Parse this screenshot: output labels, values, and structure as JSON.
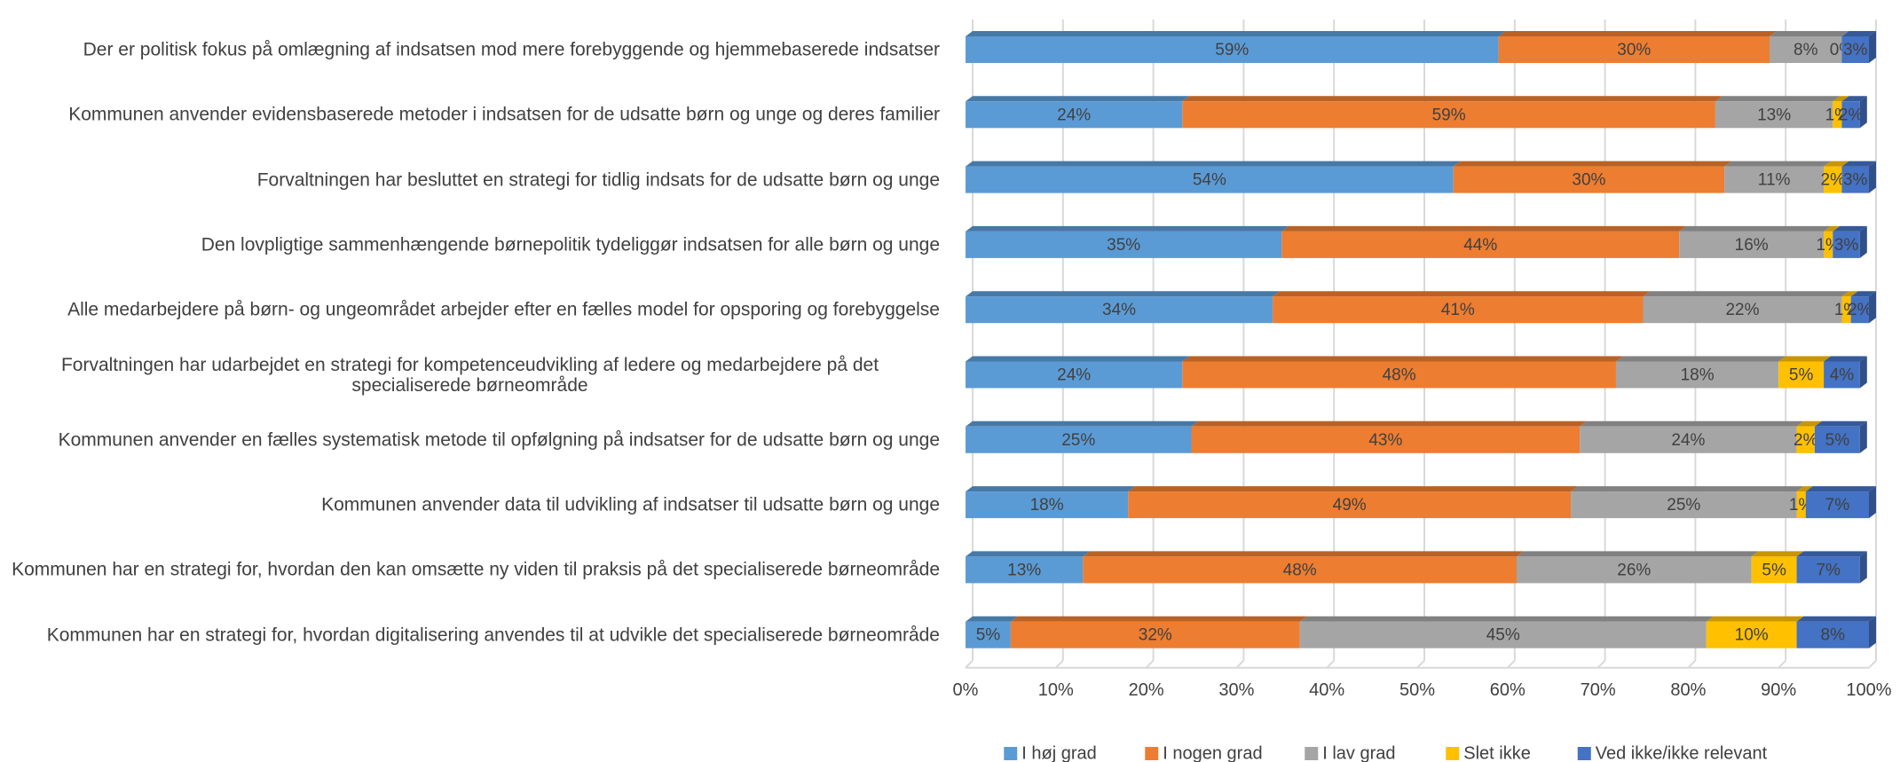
{
  "chart_data": {
    "type": "stacked_bar_horizontal",
    "categories": [
      "Der er politisk fokus på omlægning af indsatsen mod mere forebyggende og hjemmebaserede indsatser",
      "Kommunen anvender evidensbaserede metoder i indsatsen for de udsatte børn og unge og deres familier",
      "Forvaltningen har besluttet en strategi for tidlig indsats for de udsatte børn og unge",
      "Den lovpligtige sammenhængende børnepolitik tydeliggør indsatsen for alle børn og unge",
      "Alle medarbejdere på børn- og ungeområdet arbejder efter en fælles model for opsporing og forebyggelse",
      "Forvaltningen har udarbejdet en strategi for kompetenceudvikling af ledere og medarbejdere på det specialiserede børneområde",
      "Kommunen anvender en fælles systematisk metode til opfølgning på indsatser for de udsatte børn og unge",
      "Kommunen anvender data til udvikling af indsatser til udsatte børn og unge",
      "Kommunen har en strategi for, hvordan den kan omsætte ny viden til praksis på det specialiserede børneområde",
      "Kommunen har en strategi for, hvordan digitalisering anvendes til at udvikle det specialiserede børneområde"
    ],
    "series": [
      {
        "name": "I høj grad",
        "color": "#5b9bd5",
        "values": [
          59,
          24,
          54,
          35,
          34,
          24,
          25,
          18,
          13,
          5
        ],
        "value_labels": [
          "59%",
          "24%",
          "54%",
          "35%",
          "34%",
          "24%",
          "25%",
          "18%",
          "13%",
          "5%"
        ]
      },
      {
        "name": "I nogen grad",
        "color": "#ed7d31",
        "values": [
          30,
          59,
          30,
          44,
          41,
          48,
          43,
          49,
          48,
          32
        ],
        "value_labels": [
          "30%",
          "59%",
          "30%",
          "44%",
          "41%",
          "48%",
          "43%",
          "49%",
          "48%",
          "32%"
        ]
      },
      {
        "name": "I lav grad",
        "color": "#a5a5a5",
        "values": [
          8,
          13,
          11,
          16,
          22,
          18,
          24,
          25,
          26,
          45
        ],
        "value_labels": [
          "8%",
          "13%",
          "11%",
          "16%",
          "22%",
          "18%",
          "24%",
          "25%",
          "26%",
          "45%"
        ]
      },
      {
        "name": "Slet ikke",
        "color": "#ffc000",
        "values": [
          0,
          1,
          2,
          1,
          1,
          5,
          2,
          1,
          5,
          10
        ],
        "value_labels": [
          "0%",
          "1%",
          "2%",
          "1%",
          "1%",
          "5%",
          "2%",
          "1%",
          "5%",
          "10%"
        ]
      },
      {
        "name": "Ved ikke/ikke relevant",
        "color": "#4472c4",
        "values": [
          3,
          2,
          3,
          3,
          2,
          4,
          5,
          7,
          7,
          8
        ],
        "value_labels": [
          "3%",
          "2%",
          "3%",
          "3%",
          "2%",
          "4%",
          "5%",
          "7%",
          "7%",
          "8%"
        ]
      }
    ],
    "xlim": [
      0,
      100
    ],
    "xticks": [
      {
        "value": 0,
        "label": "0%"
      },
      {
        "value": 10,
        "label": "10%"
      },
      {
        "value": 20,
        "label": "20%"
      },
      {
        "value": 30,
        "label": "30%"
      },
      {
        "value": 40,
        "label": "40%"
      },
      {
        "value": 50,
        "label": "50%"
      },
      {
        "value": 60,
        "label": "60%"
      },
      {
        "value": 70,
        "label": "70%"
      },
      {
        "value": 80,
        "label": "80%"
      },
      {
        "value": 90,
        "label": "90%"
      },
      {
        "value": 100,
        "label": "100%"
      }
    ],
    "grid": true,
    "legend": "bottom"
  }
}
